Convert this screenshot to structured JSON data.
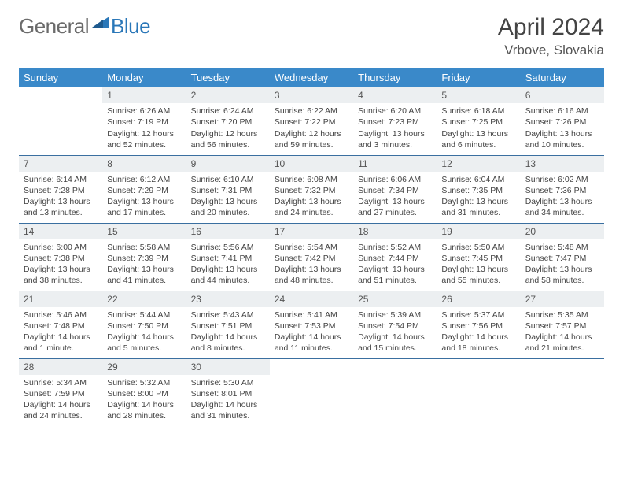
{
  "brand": {
    "part1": "General",
    "part2": "Blue"
  },
  "title": "April 2024",
  "location": "Vrbove, Slovakia",
  "colors": {
    "header_bg": "#3a89c9",
    "header_text": "#ffffff",
    "daynum_bg": "#eceff1",
    "row_border": "#3a6fa0",
    "brand_gray": "#6b6b6b",
    "brand_blue": "#2a77b8"
  },
  "weekdays": [
    "Sunday",
    "Monday",
    "Tuesday",
    "Wednesday",
    "Thursday",
    "Friday",
    "Saturday"
  ],
  "weeks": [
    [
      null,
      {
        "n": "1",
        "sr": "Sunrise: 6:26 AM",
        "ss": "Sunset: 7:19 PM",
        "d1": "Daylight: 12 hours",
        "d2": "and 52 minutes."
      },
      {
        "n": "2",
        "sr": "Sunrise: 6:24 AM",
        "ss": "Sunset: 7:20 PM",
        "d1": "Daylight: 12 hours",
        "d2": "and 56 minutes."
      },
      {
        "n": "3",
        "sr": "Sunrise: 6:22 AM",
        "ss": "Sunset: 7:22 PM",
        "d1": "Daylight: 12 hours",
        "d2": "and 59 minutes."
      },
      {
        "n": "4",
        "sr": "Sunrise: 6:20 AM",
        "ss": "Sunset: 7:23 PM",
        "d1": "Daylight: 13 hours",
        "d2": "and 3 minutes."
      },
      {
        "n": "5",
        "sr": "Sunrise: 6:18 AM",
        "ss": "Sunset: 7:25 PM",
        "d1": "Daylight: 13 hours",
        "d2": "and 6 minutes."
      },
      {
        "n": "6",
        "sr": "Sunrise: 6:16 AM",
        "ss": "Sunset: 7:26 PM",
        "d1": "Daylight: 13 hours",
        "d2": "and 10 minutes."
      }
    ],
    [
      {
        "n": "7",
        "sr": "Sunrise: 6:14 AM",
        "ss": "Sunset: 7:28 PM",
        "d1": "Daylight: 13 hours",
        "d2": "and 13 minutes."
      },
      {
        "n": "8",
        "sr": "Sunrise: 6:12 AM",
        "ss": "Sunset: 7:29 PM",
        "d1": "Daylight: 13 hours",
        "d2": "and 17 minutes."
      },
      {
        "n": "9",
        "sr": "Sunrise: 6:10 AM",
        "ss": "Sunset: 7:31 PM",
        "d1": "Daylight: 13 hours",
        "d2": "and 20 minutes."
      },
      {
        "n": "10",
        "sr": "Sunrise: 6:08 AM",
        "ss": "Sunset: 7:32 PM",
        "d1": "Daylight: 13 hours",
        "d2": "and 24 minutes."
      },
      {
        "n": "11",
        "sr": "Sunrise: 6:06 AM",
        "ss": "Sunset: 7:34 PM",
        "d1": "Daylight: 13 hours",
        "d2": "and 27 minutes."
      },
      {
        "n": "12",
        "sr": "Sunrise: 6:04 AM",
        "ss": "Sunset: 7:35 PM",
        "d1": "Daylight: 13 hours",
        "d2": "and 31 minutes."
      },
      {
        "n": "13",
        "sr": "Sunrise: 6:02 AM",
        "ss": "Sunset: 7:36 PM",
        "d1": "Daylight: 13 hours",
        "d2": "and 34 minutes."
      }
    ],
    [
      {
        "n": "14",
        "sr": "Sunrise: 6:00 AM",
        "ss": "Sunset: 7:38 PM",
        "d1": "Daylight: 13 hours",
        "d2": "and 38 minutes."
      },
      {
        "n": "15",
        "sr": "Sunrise: 5:58 AM",
        "ss": "Sunset: 7:39 PM",
        "d1": "Daylight: 13 hours",
        "d2": "and 41 minutes."
      },
      {
        "n": "16",
        "sr": "Sunrise: 5:56 AM",
        "ss": "Sunset: 7:41 PM",
        "d1": "Daylight: 13 hours",
        "d2": "and 44 minutes."
      },
      {
        "n": "17",
        "sr": "Sunrise: 5:54 AM",
        "ss": "Sunset: 7:42 PM",
        "d1": "Daylight: 13 hours",
        "d2": "and 48 minutes."
      },
      {
        "n": "18",
        "sr": "Sunrise: 5:52 AM",
        "ss": "Sunset: 7:44 PM",
        "d1": "Daylight: 13 hours",
        "d2": "and 51 minutes."
      },
      {
        "n": "19",
        "sr": "Sunrise: 5:50 AM",
        "ss": "Sunset: 7:45 PM",
        "d1": "Daylight: 13 hours",
        "d2": "and 55 minutes."
      },
      {
        "n": "20",
        "sr": "Sunrise: 5:48 AM",
        "ss": "Sunset: 7:47 PM",
        "d1": "Daylight: 13 hours",
        "d2": "and 58 minutes."
      }
    ],
    [
      {
        "n": "21",
        "sr": "Sunrise: 5:46 AM",
        "ss": "Sunset: 7:48 PM",
        "d1": "Daylight: 14 hours",
        "d2": "and 1 minute."
      },
      {
        "n": "22",
        "sr": "Sunrise: 5:44 AM",
        "ss": "Sunset: 7:50 PM",
        "d1": "Daylight: 14 hours",
        "d2": "and 5 minutes."
      },
      {
        "n": "23",
        "sr": "Sunrise: 5:43 AM",
        "ss": "Sunset: 7:51 PM",
        "d1": "Daylight: 14 hours",
        "d2": "and 8 minutes."
      },
      {
        "n": "24",
        "sr": "Sunrise: 5:41 AM",
        "ss": "Sunset: 7:53 PM",
        "d1": "Daylight: 14 hours",
        "d2": "and 11 minutes."
      },
      {
        "n": "25",
        "sr": "Sunrise: 5:39 AM",
        "ss": "Sunset: 7:54 PM",
        "d1": "Daylight: 14 hours",
        "d2": "and 15 minutes."
      },
      {
        "n": "26",
        "sr": "Sunrise: 5:37 AM",
        "ss": "Sunset: 7:56 PM",
        "d1": "Daylight: 14 hours",
        "d2": "and 18 minutes."
      },
      {
        "n": "27",
        "sr": "Sunrise: 5:35 AM",
        "ss": "Sunset: 7:57 PM",
        "d1": "Daylight: 14 hours",
        "d2": "and 21 minutes."
      }
    ],
    [
      {
        "n": "28",
        "sr": "Sunrise: 5:34 AM",
        "ss": "Sunset: 7:59 PM",
        "d1": "Daylight: 14 hours",
        "d2": "and 24 minutes."
      },
      {
        "n": "29",
        "sr": "Sunrise: 5:32 AM",
        "ss": "Sunset: 8:00 PM",
        "d1": "Daylight: 14 hours",
        "d2": "and 28 minutes."
      },
      {
        "n": "30",
        "sr": "Sunrise: 5:30 AM",
        "ss": "Sunset: 8:01 PM",
        "d1": "Daylight: 14 hours",
        "d2": "and 31 minutes."
      },
      null,
      null,
      null,
      null
    ]
  ]
}
